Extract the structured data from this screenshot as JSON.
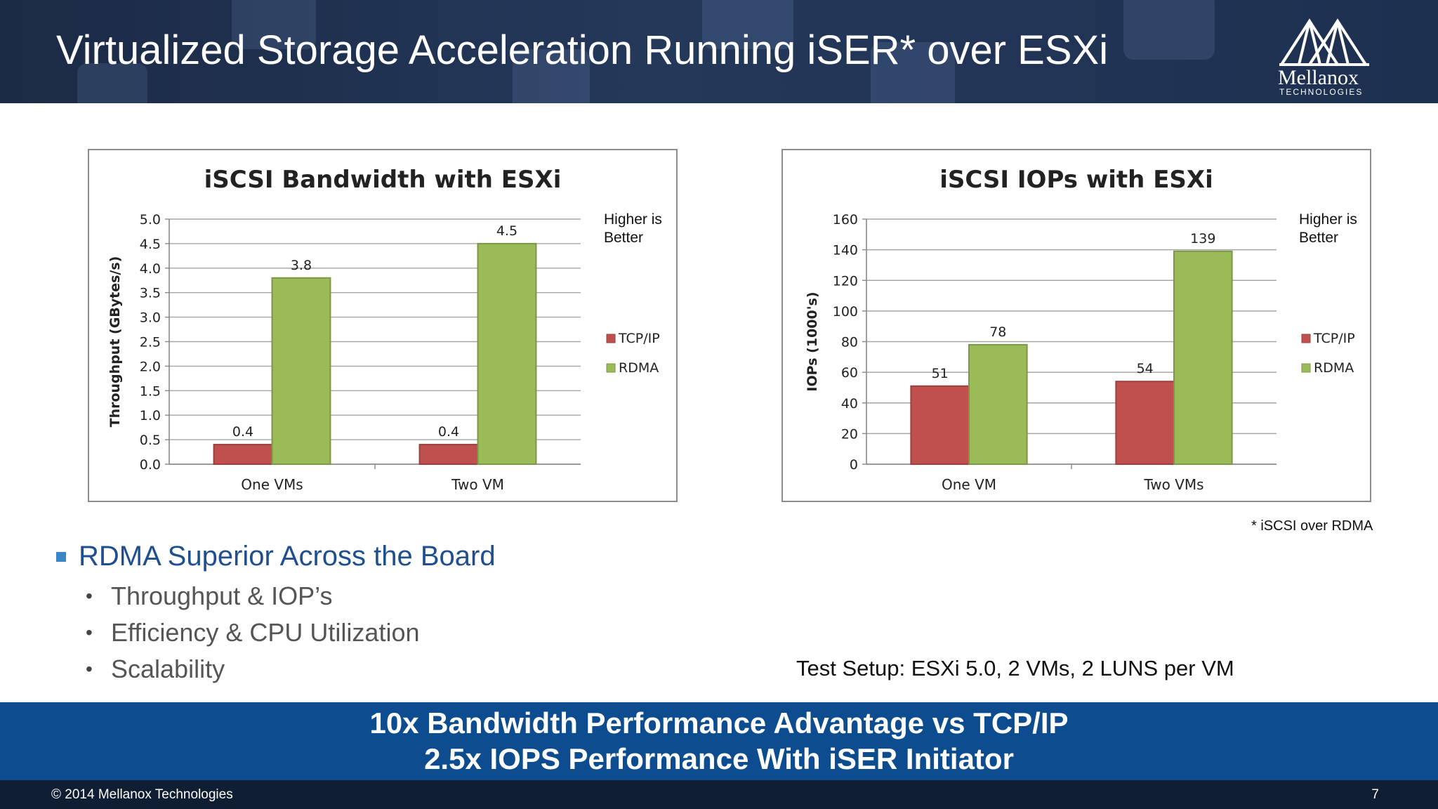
{
  "slide": {
    "title": "Virtualized Storage Acceleration Running iSER* over ESXi",
    "logo_name": "Mellanox",
    "logo_sub": "TECHNOLOGIES"
  },
  "chart_data": [
    {
      "type": "bar",
      "title": "iSCSI Bandwidth with ESXi",
      "ylabel": "Throughput (GBytes/s)",
      "xlabel": "",
      "categories": [
        "One VMs",
        "Two VM"
      ],
      "series": [
        {
          "name": "TCP/IP",
          "values": [
            0.4,
            0.4
          ],
          "color": "#c0504d"
        },
        {
          "name": "RDMA",
          "values": [
            3.8,
            4.5
          ],
          "color": "#9bbb59"
        }
      ],
      "ylim": [
        0,
        5.0
      ],
      "ytick_step": 0.5,
      "ytick_decimals": 1,
      "legend_position": "right",
      "note": "Higher is Better",
      "grid": true
    },
    {
      "type": "bar",
      "title": "iSCSI IOPs with ESXi",
      "ylabel": "IOPs (1000's)",
      "xlabel": "",
      "categories": [
        "One VM",
        "Two VMs"
      ],
      "series": [
        {
          "name": "TCP/IP",
          "values": [
            51,
            54
          ],
          "color": "#c0504d"
        },
        {
          "name": "RDMA",
          "values": [
            78,
            139
          ],
          "color": "#9bbb59"
        }
      ],
      "ylim": [
        0,
        160
      ],
      "ytick_step": 20,
      "ytick_decimals": 0,
      "legend_position": "right",
      "note": "Higher is Better",
      "grid": true
    }
  ],
  "footnote": "* iSCSI over RDMA",
  "bullets": {
    "main": "RDMA Superior Across the Board",
    "sub": [
      "Throughput & IOP’s",
      "Efficiency & CPU Utilization",
      "Scalability"
    ]
  },
  "test_setup": "Test Setup: ESXi 5.0, 2 VMs, 2 LUNS per VM",
  "banner": {
    "line1": "10x Bandwidth Performance Advantage vs TCP/IP",
    "line2": "2.5x IOPS Performance With iSER Initiator"
  },
  "footer": {
    "copyright": "© 2014 Mellanox Technologies",
    "page": "7"
  }
}
